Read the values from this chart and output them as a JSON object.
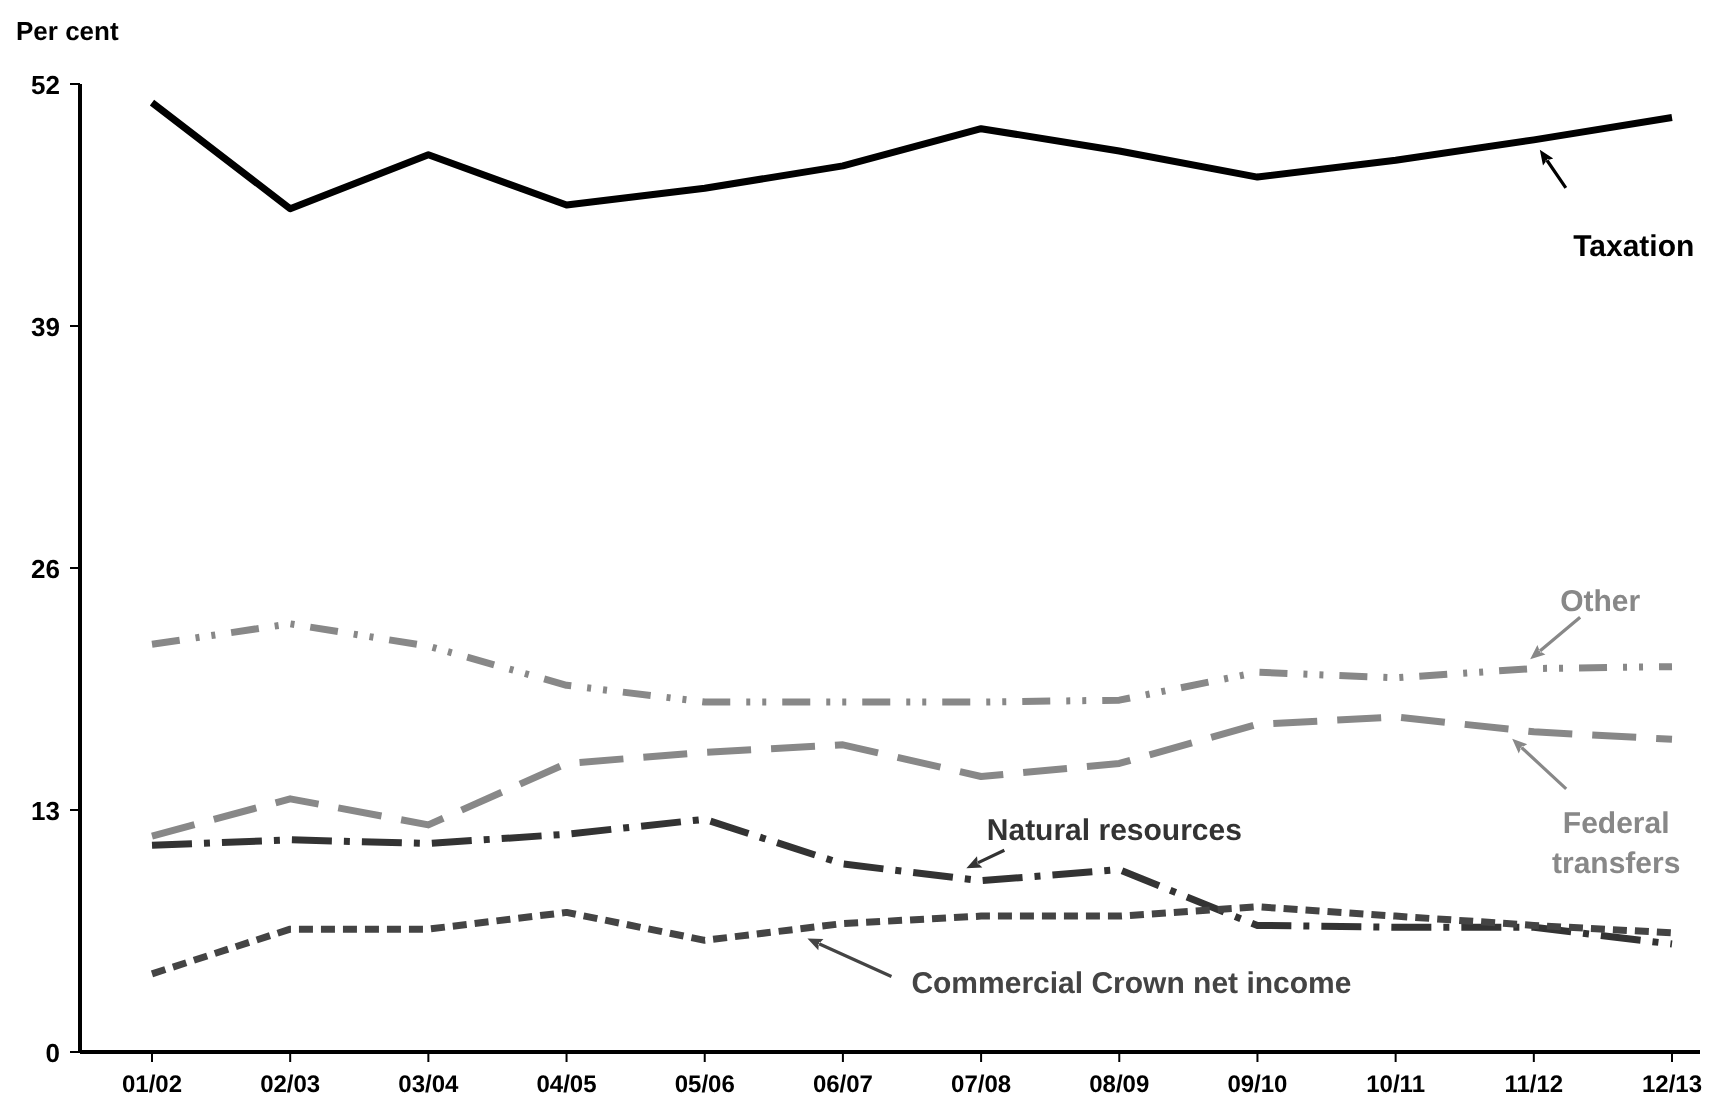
{
  "chart_data": {
    "type": "line",
    "ylabel": "Per cent",
    "categories": [
      "01/02",
      "02/03",
      "03/04",
      "04/05",
      "05/06",
      "06/07",
      "07/08",
      "08/09",
      "09/10",
      "10/11",
      "11/12",
      "12/13"
    ],
    "ylim": [
      0,
      52
    ],
    "yticks": [
      0,
      13,
      26,
      39,
      52
    ],
    "grid": false,
    "series": [
      {
        "name": "Taxation",
        "color": "#000000",
        "line_style": "solid",
        "values": [
          51.0,
          45.3,
          48.2,
          45.5,
          46.4,
          47.6,
          49.6,
          48.4,
          47.0,
          47.9,
          49.0,
          50.2
        ]
      },
      {
        "name": "Other",
        "color": "#888888",
        "line_style": "dashed",
        "values": [
          21.9,
          23.0,
          21.8,
          19.7,
          18.8,
          18.8,
          18.8,
          18.9,
          20.4,
          20.1,
          20.6,
          20.7
        ]
      },
      {
        "name": "Federal transfers",
        "color": "#888888",
        "line_style": "dashed",
        "values": [
          11.6,
          13.6,
          12.2,
          15.5,
          16.1,
          16.5,
          14.8,
          15.5,
          17.6,
          18.0,
          17.2,
          16.8
        ]
      },
      {
        "name": "Natural resources",
        "color": "#333333",
        "line_style": "dashed",
        "values": [
          11.1,
          11.4,
          11.2,
          11.7,
          12.5,
          10.1,
          9.2,
          9.8,
          6.8,
          6.7,
          6.7,
          5.8
        ]
      },
      {
        "name": "Commercial Crown net income",
        "color": "#444444",
        "line_style": "dashed",
        "values": [
          4.2,
          6.6,
          6.6,
          7.5,
          6.0,
          6.9,
          7.3,
          7.3,
          7.8,
          7.3,
          6.8,
          6.4
        ]
      }
    ]
  }
}
